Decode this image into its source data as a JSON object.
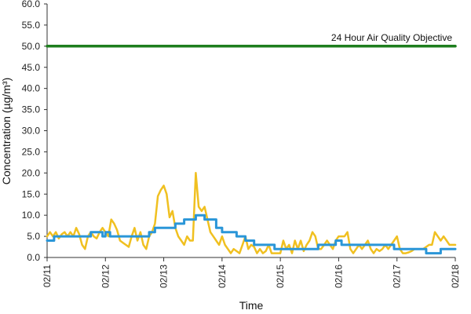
{
  "chart_data": {
    "type": "line",
    "title": "",
    "xlabel": "Time",
    "ylabel": "Concentration (µg/m³)",
    "ylim": [
      0,
      60
    ],
    "yticks": [
      "0.0",
      "5.0",
      "10.0",
      "15.0",
      "20.0",
      "25.0",
      "30.0",
      "35.0",
      "40.0",
      "45.0",
      "50.0",
      "55.0",
      "60.0"
    ],
    "xlim": [
      0,
      7
    ],
    "xtick_values": [
      0,
      1,
      2,
      3,
      4,
      5,
      6,
      7
    ],
    "xtick_labels": [
      "02/11",
      "02/12",
      "02/13",
      "02/14",
      "02/15",
      "02/16",
      "02/17",
      "02/18"
    ],
    "grid": false,
    "legend": false,
    "annotation": {
      "text": "24 Hour Air Quality Objective",
      "value": 50
    },
    "series": [
      {
        "color": "#f0c020",
        "points": [
          [
            0.0,
            5.0
          ],
          [
            0.05,
            6.0
          ],
          [
            0.1,
            5.0
          ],
          [
            0.15,
            6.0
          ],
          [
            0.2,
            4.5
          ],
          [
            0.25,
            5.5
          ],
          [
            0.3,
            6.0
          ],
          [
            0.35,
            5.0
          ],
          [
            0.4,
            6.0
          ],
          [
            0.45,
            5.0
          ],
          [
            0.5,
            7.0
          ],
          [
            0.55,
            5.5
          ],
          [
            0.6,
            3.0
          ],
          [
            0.65,
            2.0
          ],
          [
            0.7,
            5.0
          ],
          [
            0.75,
            6.0
          ],
          [
            0.8,
            5.0
          ],
          [
            0.85,
            4.5
          ],
          [
            0.9,
            6.0
          ],
          [
            0.95,
            7.0
          ],
          [
            1.0,
            6.0
          ],
          [
            1.05,
            5.0
          ],
          [
            1.1,
            9.0
          ],
          [
            1.15,
            8.0
          ],
          [
            1.2,
            6.5
          ],
          [
            1.25,
            4.0
          ],
          [
            1.3,
            3.5
          ],
          [
            1.35,
            3.0
          ],
          [
            1.4,
            2.5
          ],
          [
            1.45,
            5.0
          ],
          [
            1.5,
            7.0
          ],
          [
            1.55,
            4.0
          ],
          [
            1.6,
            6.0
          ],
          [
            1.65,
            3.0
          ],
          [
            1.7,
            2.0
          ],
          [
            1.75,
            5.0
          ],
          [
            1.8,
            6.0
          ],
          [
            1.85,
            8.0
          ],
          [
            1.9,
            14.5
          ],
          [
            1.95,
            16.0
          ],
          [
            2.0,
            17.0
          ],
          [
            2.05,
            15.0
          ],
          [
            2.1,
            9.5
          ],
          [
            2.15,
            11.0
          ],
          [
            2.2,
            7.0
          ],
          [
            2.25,
            5.0
          ],
          [
            2.3,
            4.0
          ],
          [
            2.35,
            3.0
          ],
          [
            2.4,
            5.0
          ],
          [
            2.45,
            4.0
          ],
          [
            2.5,
            4.0
          ],
          [
            2.55,
            20.0
          ],
          [
            2.6,
            12.0
          ],
          [
            2.65,
            11.0
          ],
          [
            2.7,
            12.0
          ],
          [
            2.75,
            9.0
          ],
          [
            2.8,
            6.0
          ],
          [
            2.85,
            5.0
          ],
          [
            2.9,
            4.0
          ],
          [
            2.95,
            3.0
          ],
          [
            3.0,
            5.0
          ],
          [
            3.05,
            3.0
          ],
          [
            3.1,
            2.0
          ],
          [
            3.15,
            1.0
          ],
          [
            3.2,
            2.0
          ],
          [
            3.25,
            1.5
          ],
          [
            3.3,
            1.0
          ],
          [
            3.35,
            3.0
          ],
          [
            3.4,
            5.0
          ],
          [
            3.45,
            2.0
          ],
          [
            3.5,
            3.0
          ],
          [
            3.55,
            2.5
          ],
          [
            3.6,
            1.0
          ],
          [
            3.65,
            2.0
          ],
          [
            3.7,
            1.0
          ],
          [
            3.75,
            1.5
          ],
          [
            3.8,
            3.0
          ],
          [
            3.85,
            1.0
          ],
          [
            3.9,
            1.0
          ],
          [
            3.95,
            1.0
          ],
          [
            4.0,
            1.0
          ],
          [
            4.05,
            4.0
          ],
          [
            4.1,
            2.0
          ],
          [
            4.15,
            3.0
          ],
          [
            4.2,
            1.0
          ],
          [
            4.25,
            4.0
          ],
          [
            4.3,
            2.0
          ],
          [
            4.35,
            4.0
          ],
          [
            4.4,
            1.5
          ],
          [
            4.45,
            3.0
          ],
          [
            4.5,
            4.0
          ],
          [
            4.55,
            6.0
          ],
          [
            4.6,
            5.0
          ],
          [
            4.65,
            2.0
          ],
          [
            4.7,
            2.0
          ],
          [
            4.75,
            3.0
          ],
          [
            4.8,
            4.0
          ],
          [
            4.85,
            3.0
          ],
          [
            4.9,
            2.0
          ],
          [
            4.95,
            4.0
          ],
          [
            5.0,
            5.0
          ],
          [
            5.05,
            5.0
          ],
          [
            5.1,
            5.0
          ],
          [
            5.15,
            6.0
          ],
          [
            5.2,
            2.0
          ],
          [
            5.25,
            1.0
          ],
          [
            5.3,
            2.0
          ],
          [
            5.35,
            3.0
          ],
          [
            5.4,
            2.0
          ],
          [
            5.45,
            3.0
          ],
          [
            5.5,
            4.0
          ],
          [
            5.55,
            2.0
          ],
          [
            5.6,
            1.0
          ],
          [
            5.65,
            2.0
          ],
          [
            5.7,
            1.5
          ],
          [
            5.75,
            2.0
          ],
          [
            5.8,
            3.0
          ],
          [
            5.85,
            2.0
          ],
          [
            5.9,
            3.0
          ],
          [
            5.95,
            4.0
          ],
          [
            6.0,
            5.0
          ],
          [
            6.05,
            2.0
          ],
          [
            6.1,
            1.0
          ],
          [
            6.15,
            1.0
          ],
          [
            6.2,
            1.2
          ],
          [
            6.25,
            1.5
          ],
          [
            6.3,
            2.0
          ],
          [
            6.35,
            2.0
          ],
          [
            6.4,
            2.0
          ],
          [
            6.45,
            2.0
          ],
          [
            6.5,
            2.5
          ],
          [
            6.55,
            3.0
          ],
          [
            6.6,
            3.0
          ],
          [
            6.65,
            6.0
          ],
          [
            6.7,
            5.0
          ],
          [
            6.75,
            4.0
          ],
          [
            6.8,
            5.0
          ],
          [
            6.85,
            4.0
          ],
          [
            6.9,
            3.0
          ],
          [
            6.95,
            3.0
          ],
          [
            7.0,
            3.0
          ]
        ]
      },
      {
        "color": "#2a96d8",
        "points": [
          [
            0.0,
            4.0
          ],
          [
            0.12,
            4.0
          ],
          [
            0.12,
            5.0
          ],
          [
            0.75,
            5.0
          ],
          [
            0.75,
            6.0
          ],
          [
            0.95,
            6.0
          ],
          [
            0.95,
            5.0
          ],
          [
            1.0,
            5.0
          ],
          [
            1.0,
            6.0
          ],
          [
            1.08,
            6.0
          ],
          [
            1.08,
            5.0
          ],
          [
            1.75,
            5.0
          ],
          [
            1.75,
            6.0
          ],
          [
            1.85,
            6.0
          ],
          [
            1.85,
            7.0
          ],
          [
            2.2,
            7.0
          ],
          [
            2.2,
            8.0
          ],
          [
            2.35,
            8.0
          ],
          [
            2.35,
            9.0
          ],
          [
            2.55,
            9.0
          ],
          [
            2.55,
            10.0
          ],
          [
            2.7,
            10.0
          ],
          [
            2.7,
            9.0
          ],
          [
            2.9,
            9.0
          ],
          [
            2.9,
            7.0
          ],
          [
            3.0,
            7.0
          ],
          [
            3.0,
            6.0
          ],
          [
            3.25,
            6.0
          ],
          [
            3.25,
            5.0
          ],
          [
            3.4,
            5.0
          ],
          [
            3.4,
            4.0
          ],
          [
            3.55,
            4.0
          ],
          [
            3.55,
            3.0
          ],
          [
            3.9,
            3.0
          ],
          [
            3.9,
            2.0
          ],
          [
            4.65,
            2.0
          ],
          [
            4.65,
            3.0
          ],
          [
            4.95,
            3.0
          ],
          [
            4.95,
            4.0
          ],
          [
            5.05,
            4.0
          ],
          [
            5.05,
            3.0
          ],
          [
            5.95,
            3.0
          ],
          [
            5.95,
            2.0
          ],
          [
            6.5,
            2.0
          ],
          [
            6.5,
            1.0
          ],
          [
            6.75,
            1.0
          ],
          [
            6.75,
            2.0
          ],
          [
            7.0,
            2.0
          ]
        ]
      },
      {
        "color": "#1e7e1e",
        "points": [
          [
            0,
            50
          ],
          [
            7,
            50
          ]
        ]
      }
    ]
  }
}
